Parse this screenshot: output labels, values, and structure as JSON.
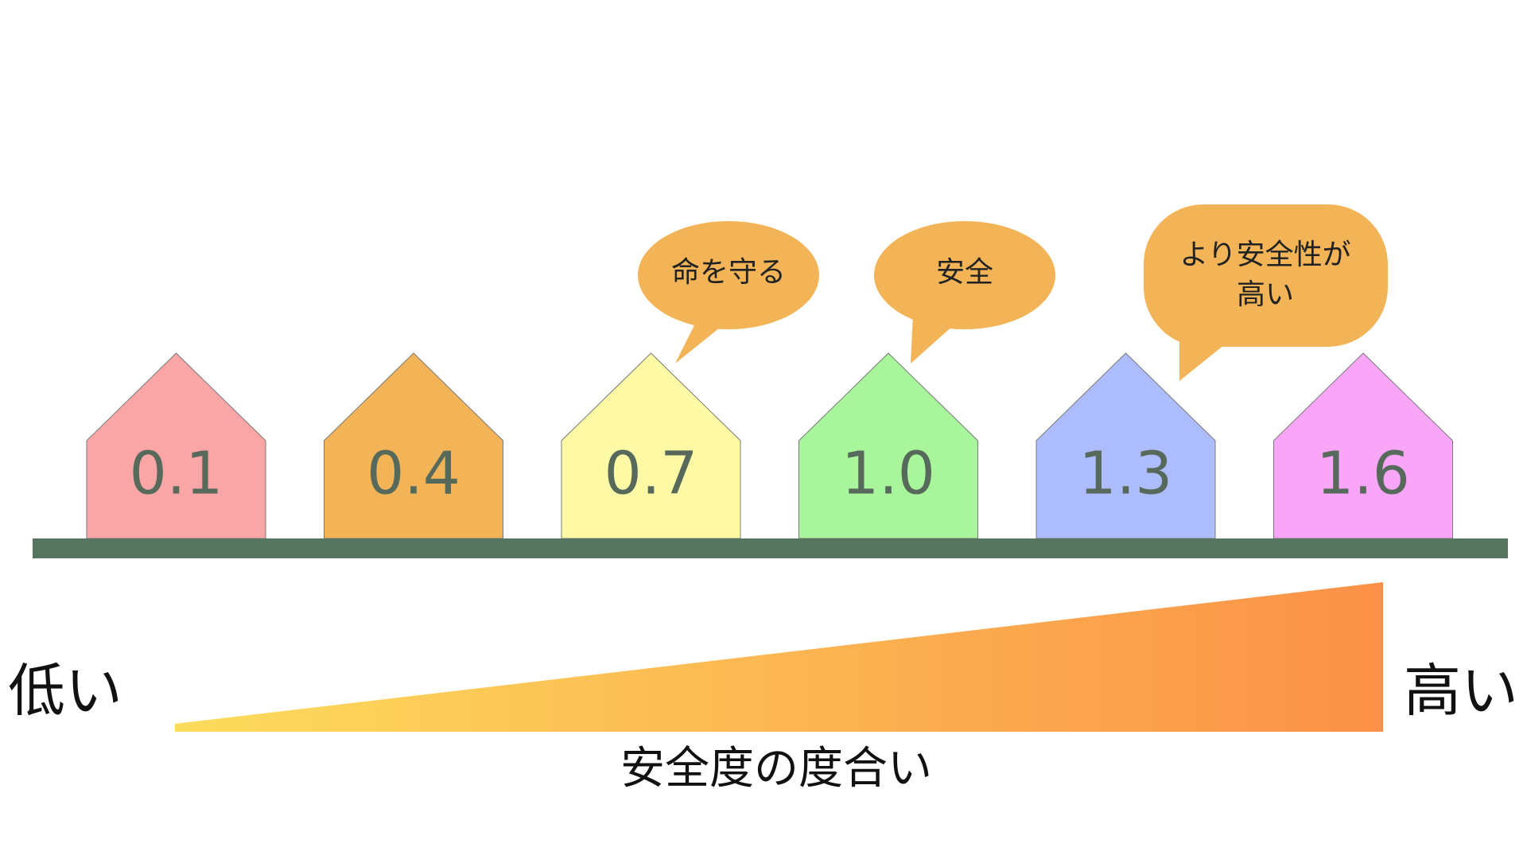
{
  "houses": [
    {
      "label": "0.1"
    },
    {
      "label": "0.4"
    },
    {
      "label": "0.7"
    },
    {
      "label": "1.0"
    },
    {
      "label": "1.3"
    },
    {
      "label": "1.6"
    }
  ],
  "bubbles": [
    {
      "text": "命を守る"
    },
    {
      "text": "安全"
    },
    {
      "lines": [
        "より安全性が",
        "高い"
      ]
    }
  ],
  "scale": {
    "low": "低い",
    "high": "高い",
    "label": "安全度の度合い"
  }
}
